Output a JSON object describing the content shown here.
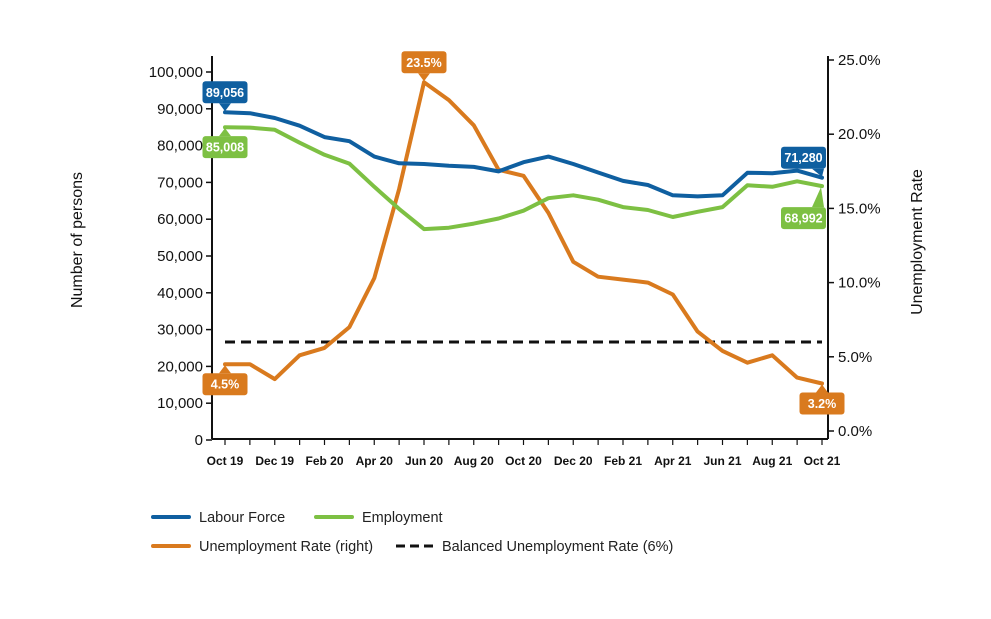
{
  "chart_data": {
    "type": "line",
    "x_categories": [
      "Oct 19",
      "Nov 19",
      "Dec 19",
      "Jan 20",
      "Feb 20",
      "Mar 20",
      "Apr 20",
      "May 20",
      "Jun 20",
      "Jul 20",
      "Aug 20",
      "Sep 20",
      "Oct 20",
      "Nov 20",
      "Dec 20",
      "Jan 21",
      "Feb 21",
      "Mar 21",
      "Apr 21",
      "May 21",
      "Jun 21",
      "Jul 21",
      "Aug 21",
      "Sep 21",
      "Oct 21"
    ],
    "x_tick_labels": [
      "Oct 19",
      "Dec 19",
      "Feb 20",
      "Apr 20",
      "Jun 20",
      "Aug 20",
      "Oct 20",
      "Dec 20",
      "Feb 21",
      "Apr 21",
      "Jun 21",
      "Aug 21",
      "Oct 21"
    ],
    "y_left": {
      "label": "Number of persons",
      "range": [
        0,
        100000
      ],
      "ticks": [
        "0",
        "10,000",
        "20,000",
        "30,000",
        "40,000",
        "50,000",
        "60,000",
        "70,000",
        "80,000",
        "90,000",
        "100,000"
      ]
    },
    "y_right": {
      "label": "Unemployment Rate",
      "range": [
        0,
        25
      ],
      "ticks": [
        "0.0%",
        "5.0%",
        "10.0%",
        "15.0%",
        "20.0%",
        "25.0%"
      ]
    },
    "series": [
      {
        "name": "Labour Force",
        "axis": "left",
        "color": "#0f5fa0",
        "values": [
          89056,
          88800,
          87500,
          85400,
          82300,
          81200,
          77000,
          75200,
          75000,
          74500,
          74200,
          73000,
          75500,
          77000,
          75000,
          72700,
          70400,
          69300,
          66500,
          66200,
          66500,
          72600,
          72500,
          73200,
          71280
        ]
      },
      {
        "name": "Employment",
        "axis": "left",
        "color": "#7dc043",
        "values": [
          85008,
          84900,
          84300,
          80800,
          77500,
          75100,
          68800,
          62800,
          57300,
          57700,
          58800,
          60200,
          62300,
          65700,
          66500,
          65300,
          63300,
          62500,
          60600,
          62000,
          63300,
          69200,
          68800,
          70300,
          68992
        ]
      },
      {
        "name": "Unemployment Rate (right)",
        "axis": "right",
        "color": "#d97a1e",
        "values": [
          4.5,
          4.5,
          3.5,
          5.1,
          5.6,
          7.0,
          10.3,
          16.3,
          23.5,
          22.3,
          20.6,
          17.6,
          17.2,
          14.7,
          11.4,
          10.4,
          10.2,
          10.0,
          9.2,
          6.7,
          5.4,
          4.6,
          5.1,
          3.6,
          3.2
        ]
      },
      {
        "name": "Balanced Unemployment Rate (6%)",
        "axis": "right",
        "color": "#111111",
        "dashed": true,
        "values": [
          6,
          6,
          6,
          6,
          6,
          6,
          6,
          6,
          6,
          6,
          6,
          6,
          6,
          6,
          6,
          6,
          6,
          6,
          6,
          6,
          6,
          6,
          6,
          6,
          6
        ]
      }
    ],
    "annotations": [
      {
        "text": "89,056",
        "series": "Labour Force",
        "index": 0,
        "color": "#0f5fa0",
        "placement": "above"
      },
      {
        "text": "85,008",
        "series": "Employment",
        "index": 0,
        "color": "#7dc043",
        "placement": "below"
      },
      {
        "text": "71,280",
        "series": "Labour Force",
        "index": 24,
        "color": "#0f5fa0",
        "placement": "above-left"
      },
      {
        "text": "68,992",
        "series": "Employment",
        "index": 24,
        "color": "#7dc043",
        "placement": "below-left"
      },
      {
        "text": "23.5%",
        "series": "Unemployment Rate (right)",
        "index": 8,
        "color": "#d97a1e",
        "placement": "above"
      },
      {
        "text": "4.5%",
        "series": "Unemployment Rate (right)",
        "index": 0,
        "color": "#d97a1e",
        "placement": "below"
      },
      {
        "text": "3.2%",
        "series": "Unemployment Rate (right)",
        "index": 24,
        "color": "#d97a1e",
        "placement": "below"
      }
    ],
    "legend": {
      "placement": "bottom-left",
      "items": [
        {
          "label": "Labour Force",
          "color": "#0f5fa0",
          "dashed": false
        },
        {
          "label": "Employment",
          "color": "#7dc043",
          "dashed": false
        },
        {
          "label": "Unemployment Rate (right)",
          "color": "#d97a1e",
          "dashed": false
        },
        {
          "label": "Balanced Unemployment Rate (6%)",
          "color": "#111111",
          "dashed": true
        }
      ]
    },
    "grid": false
  }
}
